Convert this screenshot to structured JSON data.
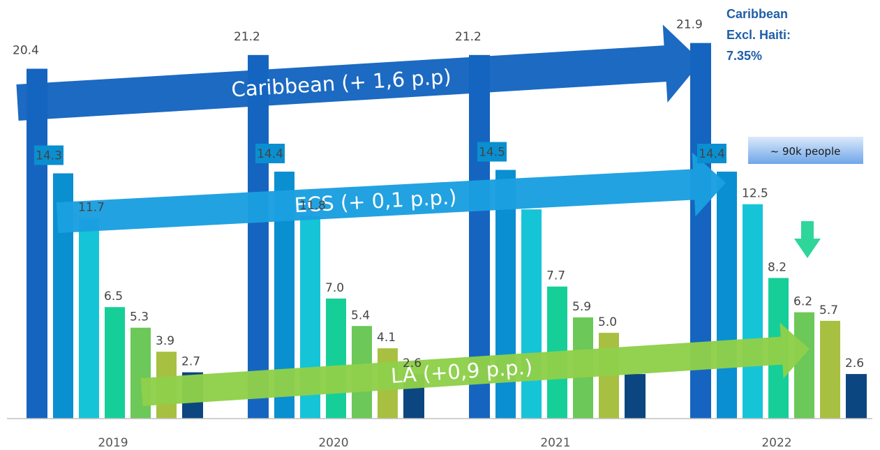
{
  "chart_data": {
    "type": "bar",
    "categories": [
      "2019",
      "2020",
      "2021",
      "2022"
    ],
    "ylim": [
      0,
      24
    ],
    "grid": false,
    "legend": "none",
    "series": [
      {
        "values": [
          20.4,
          21.2,
          21.2,
          21.9
        ],
        "color": "#1565c0"
      },
      {
        "values": [
          14.3,
          14.4,
          14.5,
          14.4
        ],
        "color": "#0a8fd1",
        "boxed_labels": true
      },
      {
        "values": [
          11.7,
          11.8,
          12.2,
          12.5
        ],
        "color": "#16c4d8"
      },
      {
        "values": [
          6.5,
          7.0,
          7.7,
          8.2
        ],
        "color": "#16cf98"
      },
      {
        "values": [
          5.3,
          5.4,
          5.9,
          6.2
        ],
        "color": "#6cc858"
      },
      {
        "values": [
          3.9,
          4.1,
          5.0,
          5.7
        ],
        "color": "#a8c041"
      },
      {
        "values": [
          2.7,
          2.6,
          2.6,
          2.6
        ],
        "color": "#0c4680"
      }
    ],
    "display_labels": [
      [
        "20.4",
        "21.2",
        "21.2",
        "21.9"
      ],
      [
        "14.3",
        "14.4",
        "14.5",
        "14.4"
      ],
      [
        "11.7",
        "11.8",
        "",
        "12.5"
      ],
      [
        "6.5",
        "7.0",
        "7.7",
        "8.2"
      ],
      [
        "5.3",
        "5.4",
        "5.9",
        "6.2"
      ],
      [
        "3.9",
        "4.1",
        "5.0",
        "5.7"
      ],
      [
        "2.7",
        "2.6",
        "",
        "2.6"
      ]
    ],
    "annotations": {
      "arrows": [
        {
          "label": "Caribbean (+ 1,6 p.p)",
          "color": "#1565c0"
        },
        {
          "label": "ECS (+ 0,1 p.p.)",
          "color": "#1b9fe0"
        },
        {
          "label": "LA (+0,9 p.p.)",
          "color": "#8fcf4a"
        }
      ],
      "callout": "~ 90k people",
      "side_note": [
        "Caribbean",
        "Excl. Haiti:",
        "7.35%"
      ],
      "down_arrow_color": "#2ed69a"
    }
  }
}
